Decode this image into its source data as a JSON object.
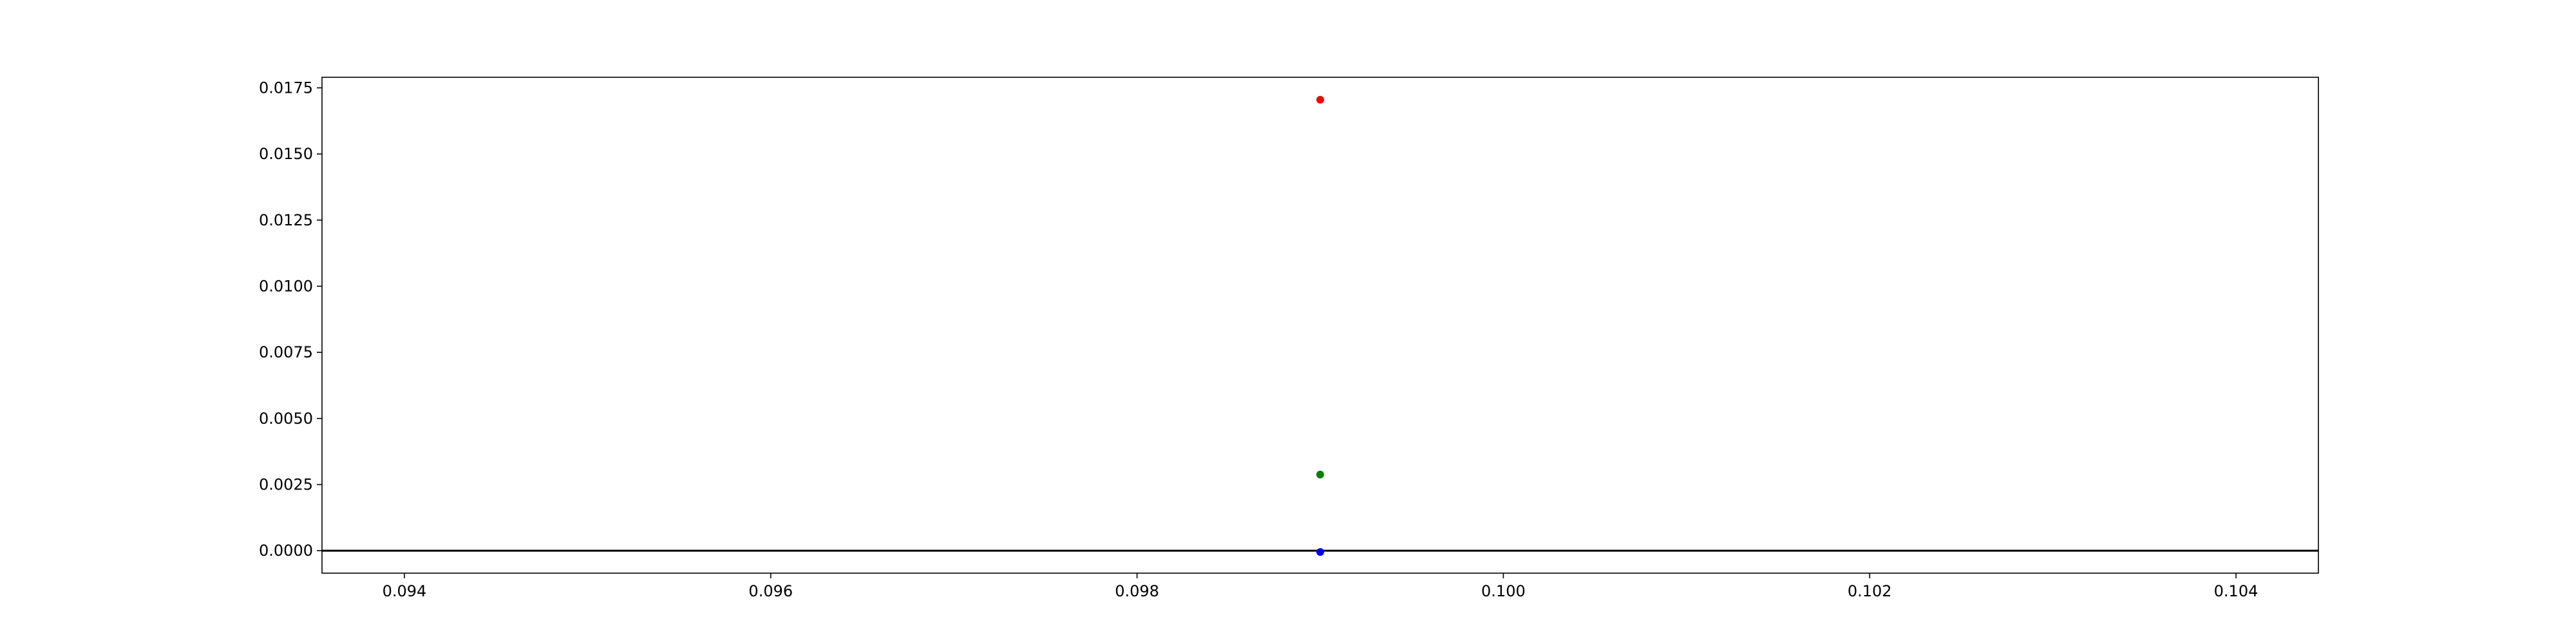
{
  "chart_data": {
    "type": "scatter",
    "title": "",
    "xlabel": "",
    "ylabel": "",
    "xlim": [
      0.09355,
      0.10445
    ],
    "ylim": [
      -0.00085,
      0.0179
    ],
    "grid": false,
    "x_ticks": [
      0.094,
      0.096,
      0.098,
      0.1,
      0.102,
      0.104
    ],
    "x_tick_labels": [
      "0.094",
      "0.096",
      "0.098",
      "0.100",
      "0.102",
      "0.104"
    ],
    "y_ticks": [
      0.0,
      0.0025,
      0.005,
      0.0075,
      0.01,
      0.0125,
      0.015,
      0.0175
    ],
    "y_tick_labels": [
      "0.0000",
      "0.0025",
      "0.0050",
      "0.0075",
      "0.0100",
      "0.0125",
      "0.0150",
      "0.0175"
    ],
    "hline": {
      "y": 0.0,
      "color": "#000000"
    },
    "series": [
      {
        "x": [
          0.099
        ],
        "y": [
          0.01705
        ],
        "color": "#ff0000"
      },
      {
        "x": [
          0.099
        ],
        "y": [
          0.00288
        ],
        "color": "#008000"
      },
      {
        "x": [
          0.099
        ],
        "y": [
          -5e-05
        ],
        "color": "#0000ff"
      }
    ]
  }
}
